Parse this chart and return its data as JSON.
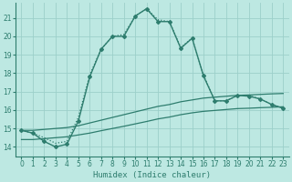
{
  "xlabel": "Humidex (Indice chaleur)",
  "background_color": "#bde8e2",
  "grid_color": "#9ccfca",
  "line_color": "#2e7d6e",
  "xlim": [
    -0.5,
    23.5
  ],
  "ylim": [
    13.5,
    21.8
  ],
  "yticks": [
    14,
    15,
    16,
    17,
    18,
    19,
    20,
    21
  ],
  "xticks": [
    0,
    1,
    2,
    3,
    4,
    5,
    6,
    7,
    8,
    9,
    10,
    11,
    12,
    13,
    14,
    15,
    16,
    17,
    18,
    19,
    20,
    21,
    22,
    23
  ],
  "solid_x": [
    0,
    1,
    2,
    3,
    4,
    5,
    6,
    7,
    8,
    9,
    10,
    11,
    12,
    13,
    14,
    15,
    16,
    17,
    18,
    19,
    20,
    21,
    22,
    23
  ],
  "solid_y": [
    14.9,
    14.75,
    14.3,
    14.0,
    14.15,
    15.4,
    17.8,
    19.3,
    20.0,
    20.0,
    21.1,
    21.5,
    20.8,
    20.8,
    19.35,
    19.9,
    17.85,
    16.5,
    16.5,
    16.8,
    16.75,
    16.6,
    16.3,
    16.1
  ],
  "dotted_x": [
    0,
    1,
    2,
    3,
    4,
    5,
    6,
    7,
    8,
    9,
    10,
    11,
    12,
    13,
    14,
    15,
    16,
    17,
    18,
    19,
    20,
    21,
    22,
    23
  ],
  "dotted_y": [
    14.9,
    14.75,
    14.5,
    14.2,
    14.3,
    15.6,
    17.9,
    19.3,
    20.0,
    20.1,
    21.1,
    21.5,
    20.9,
    20.8,
    19.4,
    19.9,
    17.9,
    16.5,
    16.5,
    16.8,
    16.8,
    16.6,
    16.3,
    16.1
  ],
  "upper_env_x": [
    0,
    1,
    2,
    3,
    4,
    5,
    6,
    7,
    8,
    9,
    10,
    11,
    12,
    13,
    14,
    15,
    16,
    17,
    18,
    19,
    20,
    21,
    22,
    23
  ],
  "upper_env_y": [
    14.9,
    14.9,
    14.95,
    15.0,
    15.05,
    15.15,
    15.3,
    15.45,
    15.6,
    15.75,
    15.9,
    16.05,
    16.2,
    16.3,
    16.45,
    16.55,
    16.65,
    16.7,
    16.75,
    16.8,
    16.82,
    16.85,
    16.88,
    16.9
  ],
  "lower_env_x": [
    0,
    1,
    2,
    3,
    4,
    5,
    6,
    7,
    8,
    9,
    10,
    11,
    12,
    13,
    14,
    15,
    16,
    17,
    18,
    19,
    20,
    21,
    22,
    23
  ],
  "lower_env_y": [
    14.4,
    14.4,
    14.45,
    14.5,
    14.55,
    14.65,
    14.75,
    14.88,
    15.0,
    15.12,
    15.25,
    15.38,
    15.52,
    15.62,
    15.75,
    15.85,
    15.93,
    15.98,
    16.03,
    16.08,
    16.1,
    16.13,
    16.15,
    16.18
  ]
}
